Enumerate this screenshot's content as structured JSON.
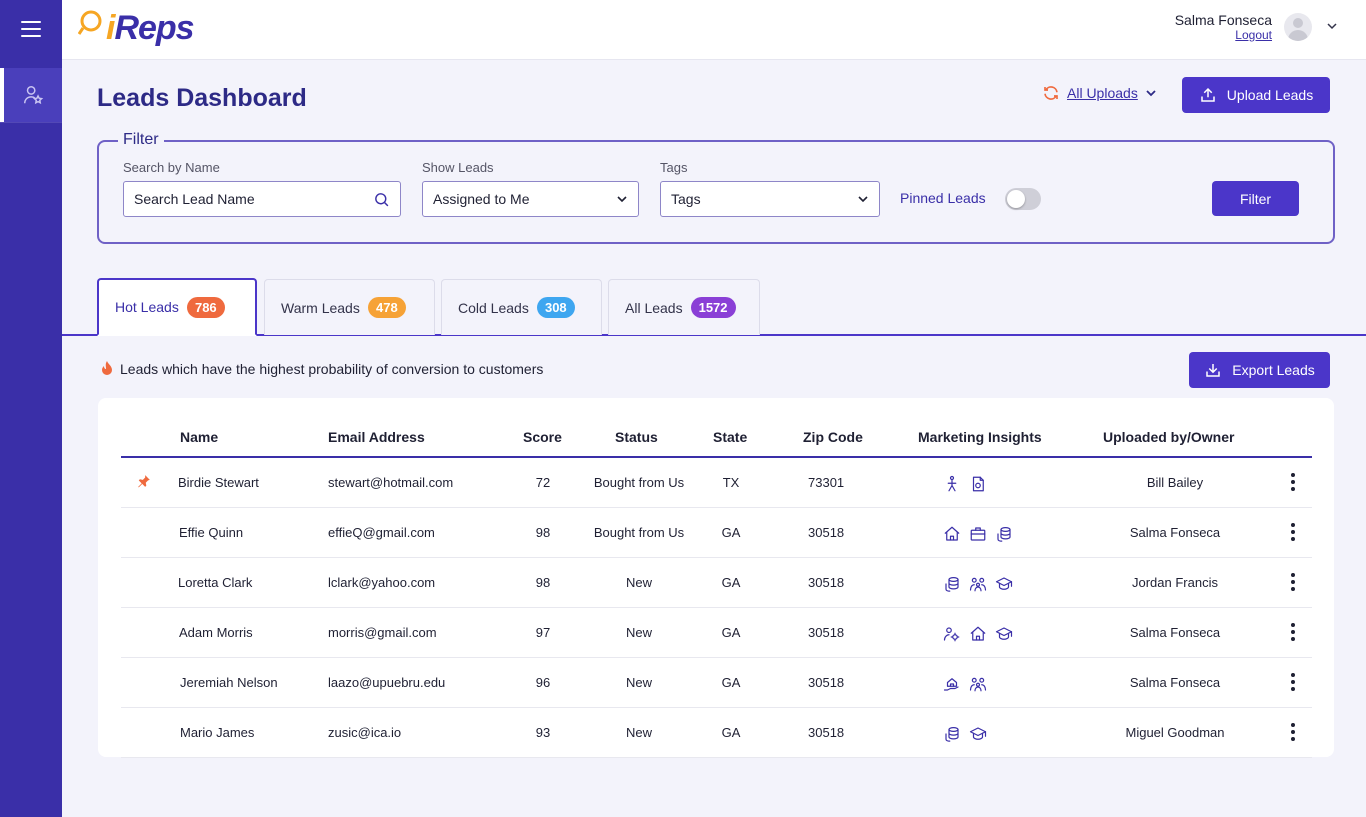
{
  "app": {
    "logo": "iReps",
    "logo_i": "i",
    "logo_rest": "Reps"
  },
  "user": {
    "name": "Salma Fonseca",
    "logout": "Logout"
  },
  "page": {
    "title": "Leads Dashboard"
  },
  "uploads": {
    "label": "All Uploads",
    "upload_button": "Upload Leads"
  },
  "filter": {
    "legend": "Filter",
    "search_label": "Search by Name",
    "search_placeholder": "Search Lead Name",
    "show_label": "Show Leads",
    "show_value": "Assigned to Me",
    "tags_label": "Tags",
    "tags_value": "Tags",
    "pinned_label": "Pinned Leads",
    "pinned_on": false,
    "button": "Filter"
  },
  "tabs": [
    {
      "label": "Hot Leads",
      "count": "786",
      "color": "#ef6a3e"
    },
    {
      "label": "Warm Leads",
      "count": "478",
      "color": "#f6a236"
    },
    {
      "label": "Cold Leads",
      "count": "308",
      "color": "#3ea6f0"
    },
    {
      "label": "All Leads",
      "count": "1572",
      "color": "#8a3fd6"
    }
  ],
  "description": "Leads which have the highest probability of conversion to customers",
  "export_button": "Export Leads",
  "table": {
    "headers": [
      "Name",
      "Email Address",
      "Score",
      "Status",
      "State",
      "Zip Code",
      "Marketing Insights",
      "Uploaded by/Owner"
    ],
    "rows": [
      {
        "pinned": true,
        "name": "Birdie Stewart",
        "email": "stewart@hotmail.com",
        "score": "72",
        "status": "Bought from Us",
        "state": "TX",
        "zip": "73301",
        "insights": [
          "user-walk-icon",
          "doc-money-icon"
        ],
        "owner": "Bill Bailey"
      },
      {
        "pinned": false,
        "name": "Effie Quinn",
        "email": "effieQ@gmail.com",
        "score": "98",
        "status": "Bought from Us",
        "state": "GA",
        "zip": "30518",
        "insights": [
          "home-icon",
          "briefcase-icon",
          "coins-icon"
        ],
        "owner": "Salma Fonseca"
      },
      {
        "pinned": false,
        "name": "Loretta Clark",
        "email": "lclark@yahoo.com",
        "score": "98",
        "status": "New",
        "state": "GA",
        "zip": "30518",
        "insights": [
          "coins-icon",
          "family-icon",
          "graduation-cap-icon"
        ],
        "owner": "Jordan Francis"
      },
      {
        "pinned": false,
        "name": "Adam Morris",
        "email": "morris@gmail.com",
        "score": "97",
        "status": "New",
        "state": "GA",
        "zip": "30518",
        "insights": [
          "users-cog-icon",
          "home-icon",
          "graduation-cap-icon"
        ],
        "owner": "Salma Fonseca"
      },
      {
        "pinned": false,
        "name": "Jeremiah Nelson",
        "email": "laazo@upuebru.edu",
        "score": "96",
        "status": "New",
        "state": "GA",
        "zip": "30518",
        "insights": [
          "hand-home-icon",
          "family-icon"
        ],
        "owner": "Salma Fonseca"
      },
      {
        "pinned": false,
        "name": "Mario James",
        "email": "zusic@ica.io",
        "score": "93",
        "status": "New",
        "state": "GA",
        "zip": "30518",
        "insights": [
          "coins-icon",
          "graduation-cap-icon"
        ],
        "owner": "Miguel Goodman"
      }
    ]
  }
}
